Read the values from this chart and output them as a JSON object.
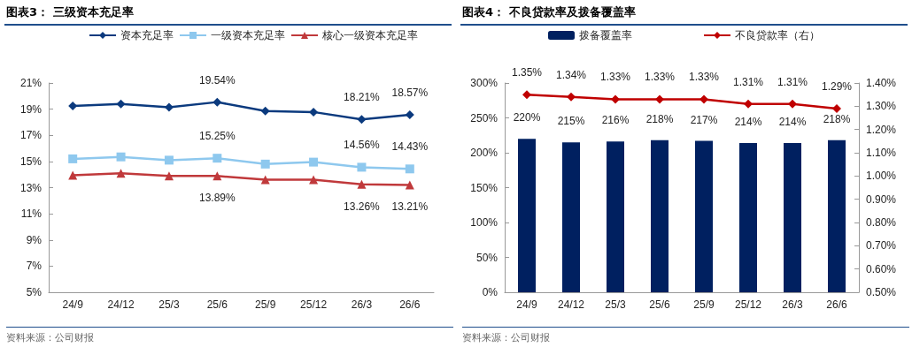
{
  "chart_data": [
    {
      "type": "line",
      "title": "图表3：  三级资本充足率",
      "categories": [
        "24/9",
        "24/12",
        "25/3",
        "25/6",
        "25/9",
        "25/12",
        "26/3",
        "26/6"
      ],
      "series": [
        {
          "name": "资本充足率",
          "color": "#0b3a7e",
          "marker": "diamond",
          "values": [
            19.25,
            19.4,
            19.15,
            19.54,
            18.85,
            18.78,
            18.21,
            18.57
          ],
          "value_labels": [
            null,
            null,
            null,
            "19.54%",
            null,
            null,
            "18.21%",
            "18.57%"
          ]
        },
        {
          "name": "一级资本充足率",
          "color": "#8ec8ee",
          "marker": "square",
          "values": [
            15.2,
            15.35,
            15.1,
            15.25,
            14.8,
            14.95,
            14.56,
            14.43
          ],
          "value_labels": [
            null,
            null,
            null,
            "15.25%",
            null,
            null,
            "14.56%",
            "14.43%"
          ]
        },
        {
          "name": "核心一级资本充足率",
          "color": "#c0393b",
          "marker": "triangle",
          "values": [
            13.95,
            14.1,
            13.9,
            13.89,
            13.6,
            13.6,
            13.26,
            13.21
          ],
          "value_labels": [
            null,
            null,
            null,
            "13.89%",
            null,
            null,
            "13.26%",
            "13.21%"
          ]
        }
      ],
      "ylim": [
        5,
        21
      ],
      "yticks": [
        {
          "value": 5,
          "label": "5%"
        },
        {
          "value": 7,
          "label": "7%"
        },
        {
          "value": 9,
          "label": "9%"
        },
        {
          "value": 11,
          "label": "11%"
        },
        {
          "value": 13,
          "label": "13%"
        },
        {
          "value": 15,
          "label": "15%"
        },
        {
          "value": 17,
          "label": "17%"
        },
        {
          "value": 19,
          "label": "19%"
        },
        {
          "value": 21,
          "label": "21%"
        }
      ],
      "legend": "top",
      "annotations": [
        "资料来源：公司财报"
      ]
    },
    {
      "type": "bar",
      "title": "图表4：  不良贷款率及拨备覆盖率",
      "categories": [
        "24/9",
        "24/12",
        "25/3",
        "25/6",
        "25/9",
        "25/12",
        "26/3",
        "26/6"
      ],
      "series": [
        {
          "name": "拨备覆盖率",
          "color": "#002060",
          "values": [
            220,
            215,
            216,
            218,
            217,
            214,
            214,
            218
          ],
          "value_labels": [
            "220%",
            "215%",
            "216%",
            "218%",
            "217%",
            "214%",
            "214%",
            "218%"
          ]
        },
        {
          "name": "不良贷款率（右）",
          "type": "line",
          "axis": "y2",
          "color": "#c00000",
          "marker": "diamond",
          "values": [
            1.35,
            1.34,
            1.33,
            1.33,
            1.33,
            1.31,
            1.31,
            1.29
          ],
          "value_labels": [
            "1.35%",
            "1.34%",
            "1.33%",
            "1.33%",
            "1.33%",
            "1.31%",
            "1.31%",
            "1.29%"
          ]
        }
      ],
      "ylim": [
        0,
        300
      ],
      "yticks": [
        {
          "value": 0,
          "label": "0%"
        },
        {
          "value": 50,
          "label": "50%"
        },
        {
          "value": 100,
          "label": "100%"
        },
        {
          "value": 150,
          "label": "150%"
        },
        {
          "value": 200,
          "label": "200%"
        },
        {
          "value": 250,
          "label": "250%"
        },
        {
          "value": 300,
          "label": "300%"
        }
      ],
      "y2lim": [
        0.5,
        1.4
      ],
      "y2ticks": [
        {
          "value": 0.5,
          "label": "0.50%"
        },
        {
          "value": 0.6,
          "label": "0.60%"
        },
        {
          "value": 0.7,
          "label": "0.70%"
        },
        {
          "value": 0.8,
          "label": "0.80%"
        },
        {
          "value": 0.9,
          "label": "0.90%"
        },
        {
          "value": 1.0,
          "label": "1.00%"
        },
        {
          "value": 1.1,
          "label": "1.10%"
        },
        {
          "value": 1.2,
          "label": "1.20%"
        },
        {
          "value": 1.3,
          "label": "1.30%"
        },
        {
          "value": 1.4,
          "label": "1.40%"
        }
      ],
      "legend": "top",
      "annotations": [
        "资料来源：公司财报"
      ]
    }
  ]
}
